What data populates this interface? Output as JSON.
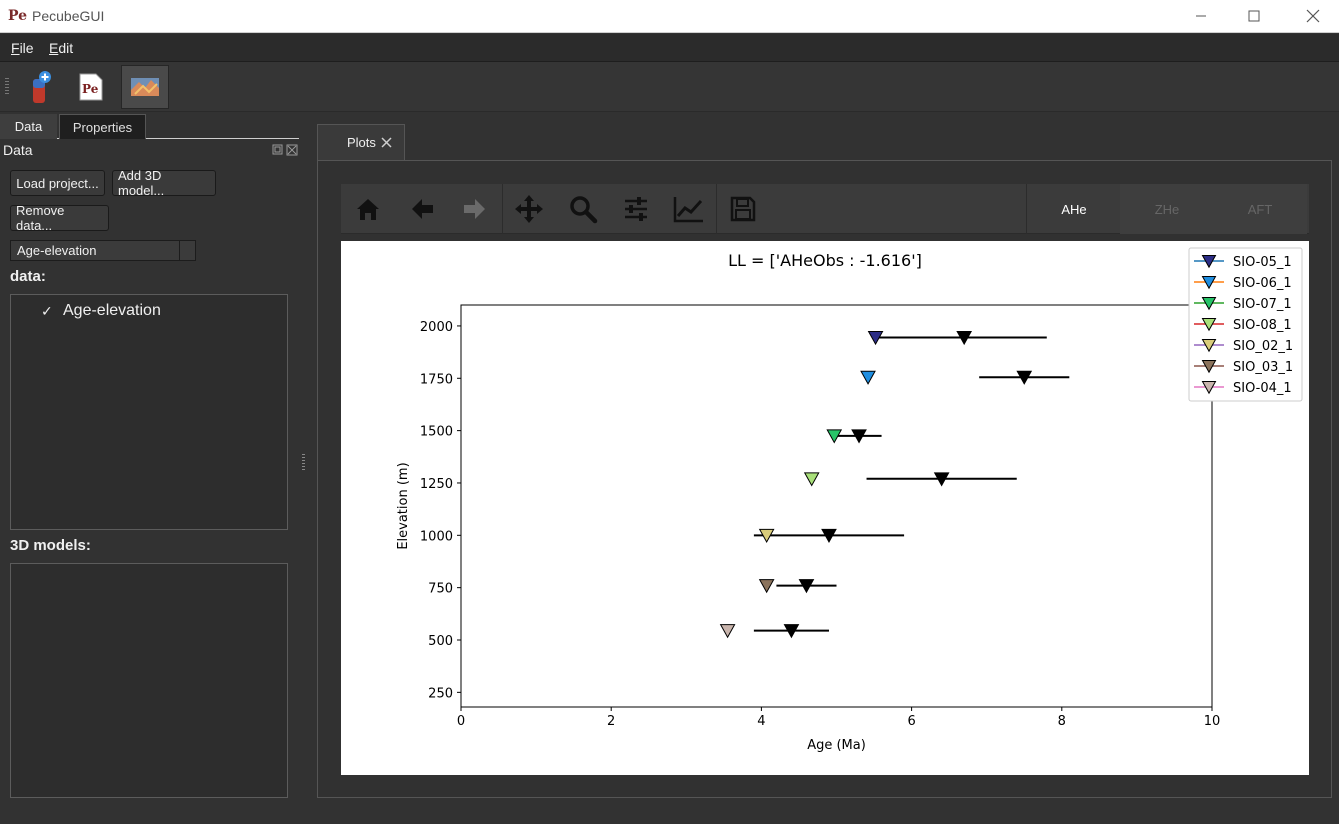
{
  "window": {
    "title": "PecubeGUI",
    "logo_text": "Pe"
  },
  "menu": [
    {
      "accel": "F",
      "rest": "ile"
    },
    {
      "accel": "E",
      "rest": "dit"
    }
  ],
  "toolbar": {
    "pecube_button_text": "Pe"
  },
  "left_panel": {
    "tabs": [
      "Data",
      "Properties"
    ],
    "dock_title": "Data",
    "buttons": {
      "load": "Load project...",
      "add3d": "Add 3D model...",
      "remove": "Remove data..."
    },
    "combo_value": "Age-elevation",
    "data_label": "data:",
    "data_items": [
      {
        "check": "✓",
        "label": "Age-elevation"
      }
    ],
    "models_label": "3D models:"
  },
  "plots_tab": {
    "label": "Plots"
  },
  "plot_type_buttons": [
    {
      "label": "AHe",
      "enabled": true
    },
    {
      "label": "ZHe",
      "enabled": false
    },
    {
      "label": "AFT",
      "enabled": false
    }
  ],
  "chart_data": {
    "type": "scatter",
    "title": "LL = ['AHeObs : -1.616']",
    "xlabel": "Age (Ma)",
    "ylabel": "Elevation (m)",
    "xlim": [
      0,
      10
    ],
    "ylim": [
      180,
      2100
    ],
    "xticks": [
      0,
      2,
      4,
      6,
      8,
      10
    ],
    "yticks": [
      250,
      500,
      750,
      1000,
      1250,
      1500,
      1750,
      2000
    ],
    "grid": false,
    "legend_position": "top-right",
    "observed_marker_color": "#000000",
    "series": [
      {
        "name": "SIO-05_1",
        "color": "#2c2d86",
        "line_color": "#1f77b4",
        "predicted": [
          5.52,
          1945
        ],
        "observed": [
          6.7,
          1945
        ],
        "error": [
          5.5,
          7.8
        ]
      },
      {
        "name": "SIO-06_1",
        "color": "#1f8ee0",
        "line_color": "#ff7f0e",
        "predicted": [
          5.42,
          1755
        ],
        "observed": [
          7.5,
          1755
        ],
        "error": [
          6.9,
          8.1
        ]
      },
      {
        "name": "SIO-07_1",
        "color": "#27c468",
        "line_color": "#2ca02c",
        "predicted": [
          4.97,
          1475
        ],
        "observed": [
          5.3,
          1475
        ],
        "error": [
          4.95,
          5.6
        ]
      },
      {
        "name": "SIO-08_1",
        "color": "#a9e07a",
        "line_color": "#d62728",
        "predicted": [
          4.67,
          1270
        ],
        "observed": [
          6.4,
          1270
        ],
        "error": [
          5.4,
          7.4
        ]
      },
      {
        "name": "SIO_02_1",
        "color": "#d9cc7a",
        "line_color": "#9467bd",
        "predicted": [
          4.07,
          1000
        ],
        "observed": [
          4.9,
          1000
        ],
        "error": [
          3.9,
          5.9
        ]
      },
      {
        "name": "SIO_03_1",
        "color": "#8b735c",
        "line_color": "#8c564b",
        "predicted": [
          4.07,
          760
        ],
        "observed": [
          4.6,
          760
        ],
        "error": [
          4.2,
          5.0
        ]
      },
      {
        "name": "SIO-04_1",
        "color": "#c9b5ad",
        "line_color": "#e377c2",
        "predicted": [
          3.55,
          545
        ],
        "observed": [
          4.4,
          545
        ],
        "error": [
          3.9,
          4.9
        ]
      }
    ]
  }
}
